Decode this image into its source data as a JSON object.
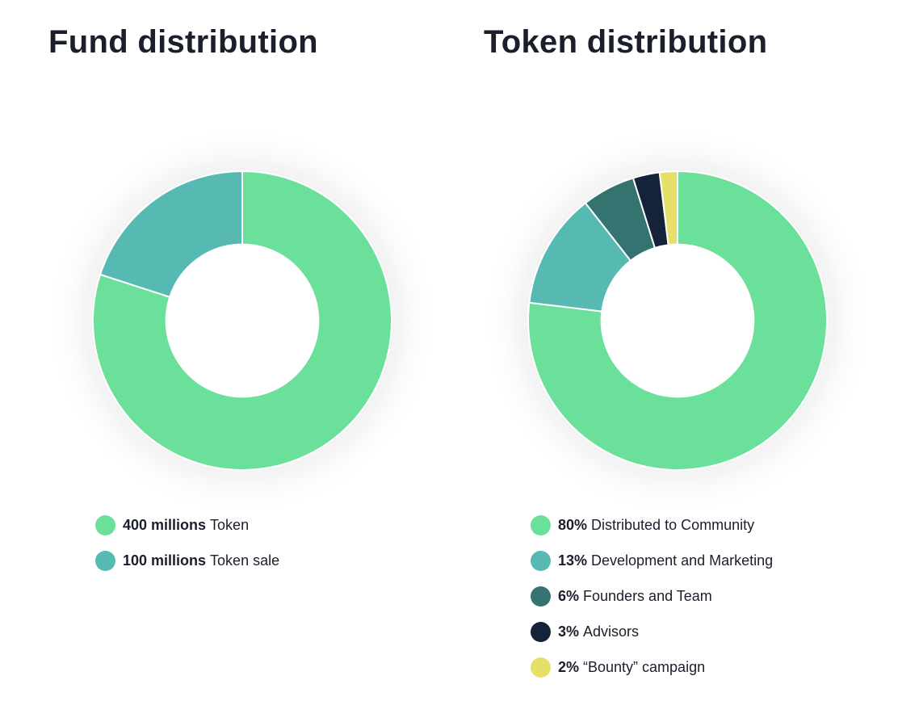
{
  "chart_data": [
    {
      "type": "pie",
      "title": "Fund distribution",
      "categories": [
        "Token",
        "Token sale"
      ],
      "values": [
        400,
        100
      ],
      "value_labels": [
        "400 millions",
        "100 millions"
      ],
      "colors": [
        "#6ae09a",
        "#56b9b2"
      ],
      "inner_radius_ratio": 0.51,
      "legend_position": "bottom"
    },
    {
      "type": "pie",
      "title": "Token distribution",
      "categories": [
        "Distributed to Community",
        "Development and Marketing",
        "Founders and Team",
        "Advisors",
        "“Bounty” campaign"
      ],
      "values": [
        80,
        13,
        6,
        3,
        2
      ],
      "value_labels": [
        "80%",
        "13%",
        "6%",
        "3%",
        "2%"
      ],
      "colors": [
        "#6ae09a",
        "#56b9b2",
        "#34736f",
        "#15233a",
        "#e4e06a"
      ],
      "inner_radius_ratio": 0.51,
      "legend_position": "bottom"
    }
  ]
}
